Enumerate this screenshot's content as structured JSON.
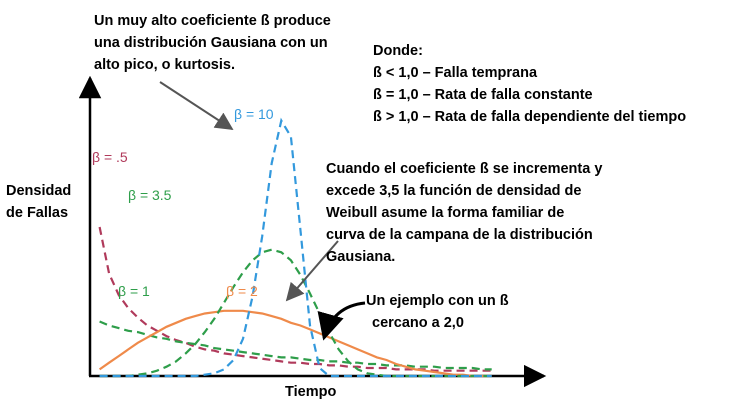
{
  "annotations": {
    "top_note": [
      "Un muy alto coeficiente ß produce",
      "una distribución Gausiana con un",
      "alto pico, o kurtosis."
    ],
    "legend_block": [
      "Donde:",
      "ß < 1,0 – Falla temprana",
      "ß = 1,0 – Rata de falla constante",
      "ß > 1,0 – Rata de falla dependiente del tiempo"
    ],
    "bell_note": [
      "Cuando el coeficiente ß se incrementa y",
      "excede 3,5 la función de densidad de",
      "Weibull asume la forma familiar de",
      "curva de la campana de la distribución",
      "Gausiana."
    ],
    "example_note": [
      "Un ejemplo con un ß",
      "cercano a 2,0"
    ]
  },
  "chart_data": {
    "type": "line",
    "ylabel": [
      "Densidad",
      "de Fallas"
    ],
    "xlabel": "Tiempo",
    "xlim": [
      0,
      2.3
    ],
    "ylim": [
      0,
      2.0
    ],
    "grid": false,
    "x": [
      0.05,
      0.1,
      0.15,
      0.2,
      0.25,
      0.3,
      0.35,
      0.4,
      0.45,
      0.5,
      0.55,
      0.6,
      0.65,
      0.7,
      0.75,
      0.8,
      0.85,
      0.9,
      0.95,
      1.0,
      1.05,
      1.1,
      1.15,
      1.2,
      1.25,
      1.3,
      1.35,
      1.4,
      1.45,
      1.5,
      1.55,
      1.6,
      1.65,
      1.7,
      1.75,
      1.8,
      1.85,
      1.9,
      1.95,
      2.0,
      2.05,
      2.1
    ],
    "series": [
      {
        "name": "β = .5",
        "color": "#b03a5b",
        "dash": "dashed",
        "label_color": "#b03a5b",
        "values": [
          1.12,
          0.77,
          0.61,
          0.51,
          0.44,
          0.38,
          0.34,
          0.3,
          0.27,
          0.25,
          0.22,
          0.2,
          0.19,
          0.17,
          0.16,
          0.15,
          0.14,
          0.13,
          0.12,
          0.11,
          0.1,
          0.1,
          0.09,
          0.09,
          0.08,
          0.08,
          0.07,
          0.07,
          0.06,
          0.06,
          0.06,
          0.05,
          0.05,
          0.05,
          0.05,
          0.04,
          0.04,
          0.04,
          0.04,
          0.04,
          0.04,
          0.04
        ]
      },
      {
        "name": "β = 1",
        "color": "#2e9e4a",
        "dash": "dashed",
        "label_color": "#2e9e4a",
        "values": [
          0.41,
          0.38,
          0.36,
          0.34,
          0.33,
          0.31,
          0.29,
          0.28,
          0.26,
          0.25,
          0.24,
          0.23,
          0.21,
          0.2,
          0.19,
          0.18,
          0.17,
          0.16,
          0.15,
          0.14,
          0.14,
          0.13,
          0.12,
          0.12,
          0.11,
          0.11,
          0.1,
          0.1,
          0.09,
          0.09,
          0.08,
          0.08,
          0.08,
          0.07,
          0.07,
          0.07,
          0.06,
          0.06,
          0.06,
          0.06,
          0.05,
          0.05
        ]
      },
      {
        "name": "β = 2",
        "color": "#ef8a4a",
        "dash": "solid",
        "label_color": "#ef8a4a",
        "values": [
          0.05,
          0.1,
          0.15,
          0.2,
          0.25,
          0.29,
          0.33,
          0.37,
          0.4,
          0.43,
          0.45,
          0.47,
          0.48,
          0.49,
          0.49,
          0.49,
          0.48,
          0.47,
          0.45,
          0.43,
          0.4,
          0.38,
          0.35,
          0.32,
          0.29,
          0.26,
          0.23,
          0.2,
          0.17,
          0.14,
          0.12,
          0.09,
          0.07,
          0.05,
          0.04,
          0.03,
          0.02,
          0.01,
          0.01,
          0.0,
          0.0,
          0.0
        ]
      },
      {
        "name": "β = 3.5",
        "color": "#2e9e4a",
        "dash": "dashed",
        "label_color": "#2e9e4a",
        "values": [
          0.0,
          0.0,
          0.0,
          0.0,
          0.01,
          0.02,
          0.04,
          0.07,
          0.11,
          0.17,
          0.24,
          0.33,
          0.43,
          0.55,
          0.67,
          0.78,
          0.87,
          0.93,
          0.95,
          0.93,
          0.87,
          0.76,
          0.62,
          0.47,
          0.33,
          0.2,
          0.11,
          0.05,
          0.02,
          0.01,
          0.0,
          0.0,
          0.0,
          0.0,
          0.0,
          0.0,
          0.0,
          0.0,
          0.0,
          0.0,
          0.0,
          0.0
        ]
      },
      {
        "name": "β = 10",
        "color": "#3399dd",
        "dash": "dashed",
        "label_color": "#3399dd",
        "values": [
          0.0,
          0.0,
          0.0,
          0.0,
          0.0,
          0.0,
          0.0,
          0.0,
          0.0,
          0.0,
          0.0,
          0.01,
          0.02,
          0.05,
          0.12,
          0.28,
          0.6,
          1.05,
          1.6,
          1.92,
          1.8,
          1.1,
          0.38,
          0.06,
          0.0,
          0.0,
          0.0,
          0.0,
          0.0,
          0.0,
          0.0,
          0.0,
          0.0,
          0.0,
          0.0,
          0.0,
          0.0,
          0.0,
          0.0,
          0.0,
          0.0,
          0.0
        ]
      }
    ]
  }
}
